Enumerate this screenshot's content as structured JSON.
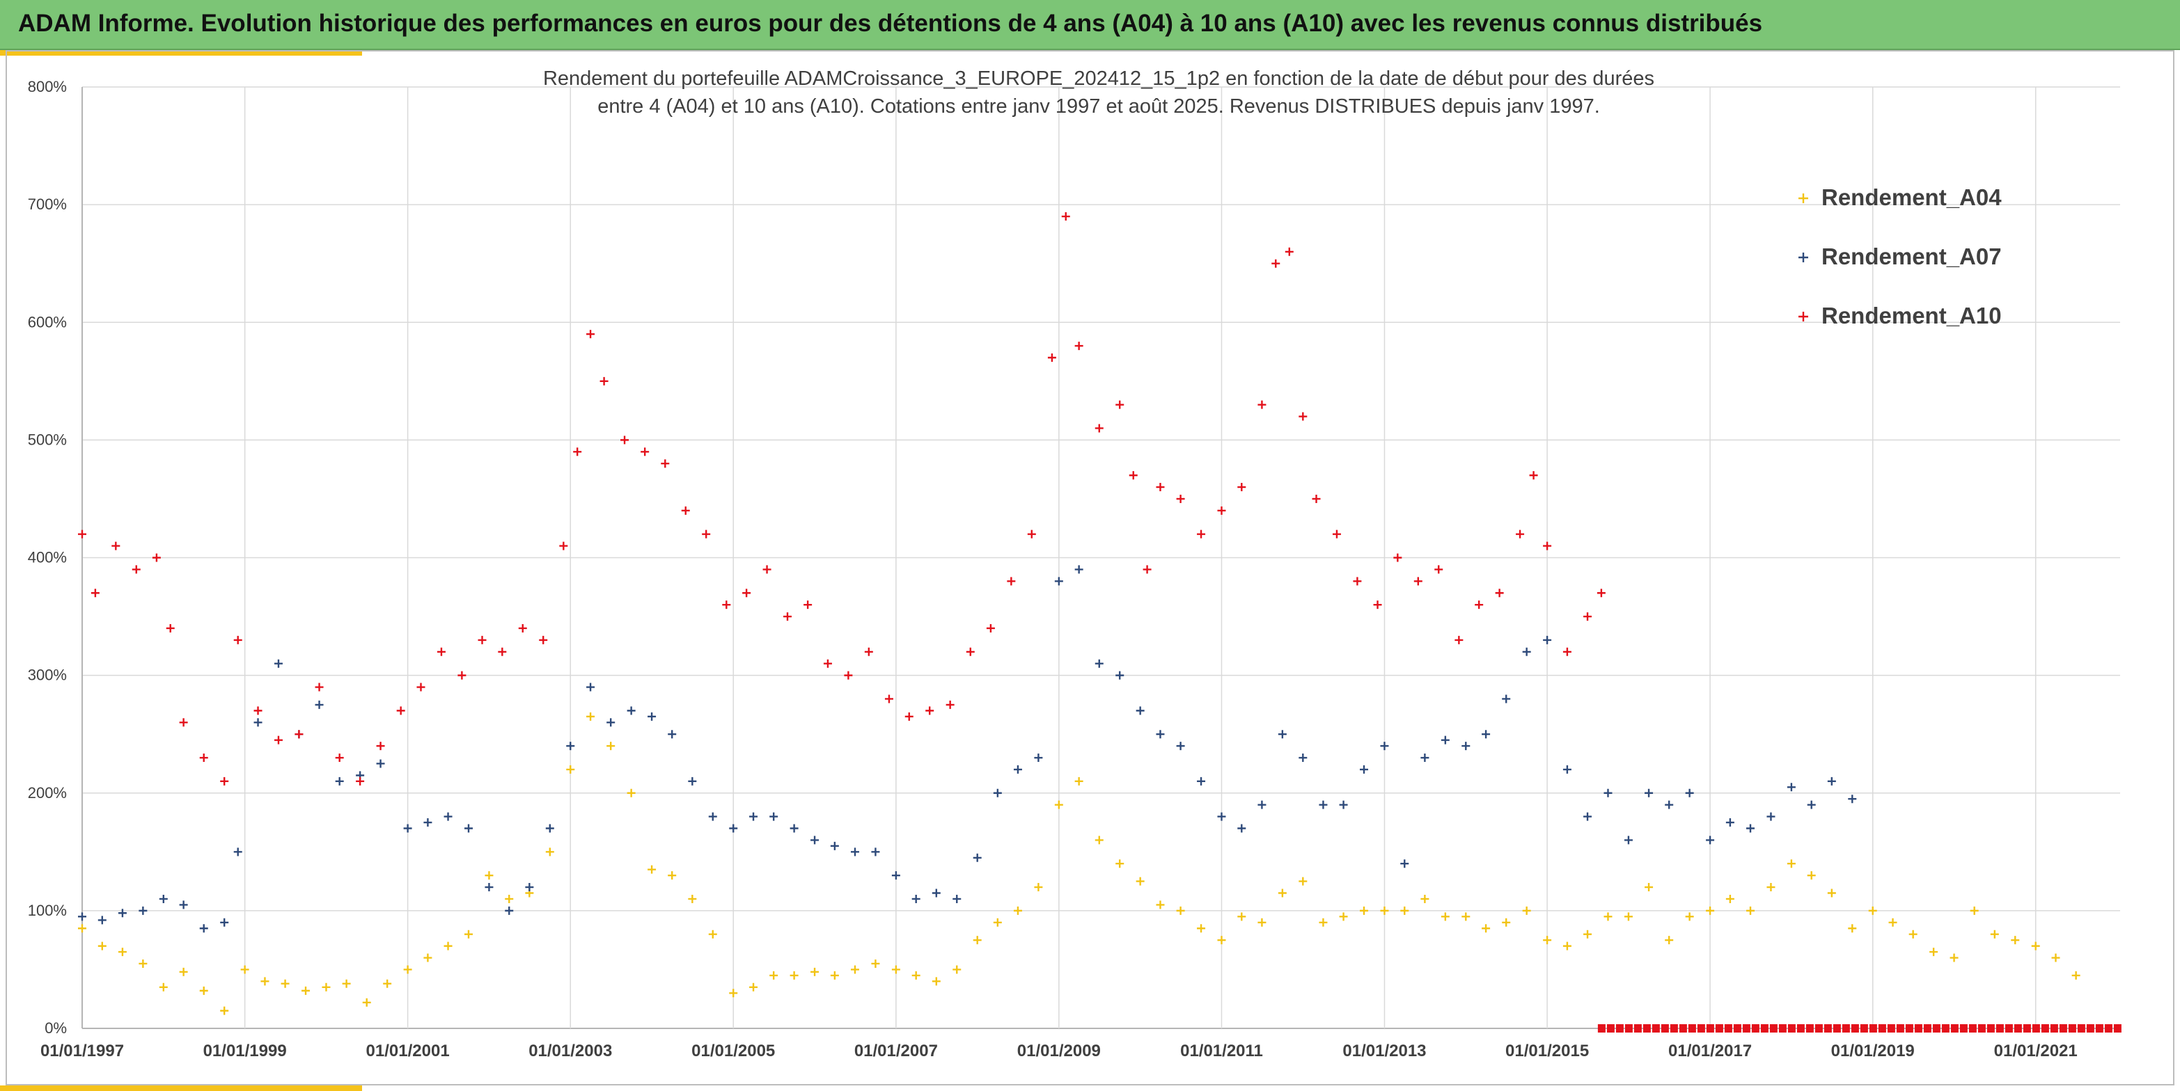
{
  "header": {
    "title": "ADAM Informe. Evolution historique des performances en euros pour des détentions de 4 ans (A04) à 10 ans (A10) avec les revenus connus distribués"
  },
  "colors": {
    "banner": "#7cc576",
    "accent": "#f5c21b",
    "A04": "#f2c314",
    "A07": "#2e4a7a",
    "A10": "#e3111b",
    "distribution_marker": "#e3111b"
  },
  "chart_data": {
    "type": "scatter",
    "title": "Rendement du portefeuille ADAMCroissance_3_EUROPE_202412_15_1p2 en fonction de la date de début pour des durées entre 4 (A04) et 10 ans (A10). Cotations entre janv 1997 et août 2025. Revenus DISTRIBUES depuis janv 1997.",
    "title_lines": [
      "Rendement du portefeuille ADAMCroissance_3_EUROPE_202412_15_1p2  en fonction de la date de début pour des durées",
      "entre 4 (A04) et 10 ans (A10). Cotations entre janv 1997 et août 2025. Revenus DISTRIBUES depuis janv 1997."
    ],
    "xlabel": "",
    "ylabel": "",
    "x_range": [
      "1997-01-01",
      "2022-01-15"
    ],
    "ylim": [
      0,
      800
    ],
    "x_ticks": [
      "01/01/1997",
      "01/01/1999",
      "01/01/2001",
      "01/01/2003",
      "01/01/2005",
      "01/01/2007",
      "01/01/2009",
      "01/01/2011",
      "01/01/2013",
      "01/01/2015",
      "01/01/2017",
      "01/01/2019",
      "01/01/2021"
    ],
    "y_ticks": [
      "0%",
      "100%",
      "200%",
      "300%",
      "400%",
      "500%",
      "600%",
      "700%",
      "800%"
    ],
    "grid": true,
    "legend_position": "top-right",
    "marker": "+",
    "series": [
      {
        "name": "Rendement_A04",
        "color": "#f2c314",
        "points": [
          [
            "1997-01-01",
            85
          ],
          [
            "1997-04-01",
            70
          ],
          [
            "1997-07-01",
            65
          ],
          [
            "1997-10-01",
            55
          ],
          [
            "1998-01-01",
            35
          ],
          [
            "1998-04-01",
            48
          ],
          [
            "1998-07-01",
            32
          ],
          [
            "1998-10-01",
            15
          ],
          [
            "1999-01-01",
            50
          ],
          [
            "1999-04-01",
            40
          ],
          [
            "1999-07-01",
            38
          ],
          [
            "1999-10-01",
            32
          ],
          [
            "2000-01-01",
            35
          ],
          [
            "2000-04-01",
            38
          ],
          [
            "2000-07-01",
            22
          ],
          [
            "2000-10-01",
            38
          ],
          [
            "2001-01-01",
            50
          ],
          [
            "2001-04-01",
            60
          ],
          [
            "2001-07-01",
            70
          ],
          [
            "2001-10-01",
            80
          ],
          [
            "2002-01-01",
            130
          ],
          [
            "2002-04-01",
            110
          ],
          [
            "2002-07-01",
            115
          ],
          [
            "2002-10-01",
            150
          ],
          [
            "2003-01-01",
            220
          ],
          [
            "2003-04-01",
            265
          ],
          [
            "2003-07-01",
            240
          ],
          [
            "2003-10-01",
            200
          ],
          [
            "2004-01-01",
            135
          ],
          [
            "2004-04-01",
            130
          ],
          [
            "2004-07-01",
            110
          ],
          [
            "2004-10-01",
            80
          ],
          [
            "2005-01-01",
            30
          ],
          [
            "2005-04-01",
            35
          ],
          [
            "2005-07-01",
            45
          ],
          [
            "2005-10-01",
            45
          ],
          [
            "2006-01-01",
            48
          ],
          [
            "2006-04-01",
            45
          ],
          [
            "2006-07-01",
            50
          ],
          [
            "2006-10-01",
            55
          ],
          [
            "2007-01-01",
            50
          ],
          [
            "2007-04-01",
            45
          ],
          [
            "2007-07-01",
            40
          ],
          [
            "2007-10-01",
            50
          ],
          [
            "2008-01-01",
            75
          ],
          [
            "2008-04-01",
            90
          ],
          [
            "2008-07-01",
            100
          ],
          [
            "2008-10-01",
            120
          ],
          [
            "2009-01-01",
            190
          ],
          [
            "2009-04-01",
            210
          ],
          [
            "2009-07-01",
            160
          ],
          [
            "2009-10-01",
            140
          ],
          [
            "2010-01-01",
            125
          ],
          [
            "2010-04-01",
            105
          ],
          [
            "2010-07-01",
            100
          ],
          [
            "2010-10-01",
            85
          ],
          [
            "2011-01-01",
            75
          ],
          [
            "2011-04-01",
            95
          ],
          [
            "2011-07-01",
            90
          ],
          [
            "2011-10-01",
            115
          ],
          [
            "2012-01-01",
            125
          ],
          [
            "2012-04-01",
            90
          ],
          [
            "2012-07-01",
            95
          ],
          [
            "2012-10-01",
            100
          ],
          [
            "2013-01-01",
            100
          ],
          [
            "2013-04-01",
            100
          ],
          [
            "2013-07-01",
            110
          ],
          [
            "2013-10-01",
            95
          ],
          [
            "2014-01-01",
            95
          ],
          [
            "2014-04-01",
            85
          ],
          [
            "2014-07-01",
            90
          ],
          [
            "2014-10-01",
            100
          ],
          [
            "2015-01-01",
            75
          ],
          [
            "2015-04-01",
            70
          ],
          [
            "2015-07-01",
            80
          ],
          [
            "2015-10-01",
            95
          ],
          [
            "2016-01-01",
            95
          ],
          [
            "2016-04-01",
            120
          ],
          [
            "2016-07-01",
            75
          ],
          [
            "2016-10-01",
            95
          ],
          [
            "2017-01-01",
            100
          ],
          [
            "2017-04-01",
            110
          ],
          [
            "2017-07-01",
            100
          ],
          [
            "2017-10-01",
            120
          ],
          [
            "2018-01-01",
            140
          ],
          [
            "2018-04-01",
            130
          ],
          [
            "2018-07-01",
            115
          ],
          [
            "2018-10-01",
            85
          ],
          [
            "2019-01-01",
            100
          ],
          [
            "2019-04-01",
            90
          ],
          [
            "2019-07-01",
            80
          ],
          [
            "2019-10-01",
            65
          ],
          [
            "2020-01-01",
            60
          ],
          [
            "2020-04-01",
            100
          ],
          [
            "2020-07-01",
            80
          ],
          [
            "2020-10-01",
            75
          ],
          [
            "2021-01-01",
            70
          ],
          [
            "2021-04-01",
            60
          ],
          [
            "2021-07-01",
            45
          ]
        ]
      },
      {
        "name": "Rendement_A07",
        "color": "#2e4a7a",
        "points": [
          [
            "1997-01-01",
            95
          ],
          [
            "1997-04-01",
            92
          ],
          [
            "1997-07-01",
            98
          ],
          [
            "1997-10-01",
            100
          ],
          [
            "1998-01-01",
            110
          ],
          [
            "1998-04-01",
            105
          ],
          [
            "1998-07-01",
            85
          ],
          [
            "1998-10-01",
            90
          ],
          [
            "1998-12-01",
            150
          ],
          [
            "1999-03-01",
            260
          ],
          [
            "1999-06-01",
            310
          ],
          [
            "1999-09-01",
            250
          ],
          [
            "1999-12-01",
            275
          ],
          [
            "2000-03-01",
            210
          ],
          [
            "2000-06-01",
            215
          ],
          [
            "2000-09-01",
            225
          ],
          [
            "2001-01-01",
            170
          ],
          [
            "2001-04-01",
            175
          ],
          [
            "2001-07-01",
            180
          ],
          [
            "2001-10-01",
            170
          ],
          [
            "2002-01-01",
            120
          ],
          [
            "2002-04-01",
            100
          ],
          [
            "2002-07-01",
            120
          ],
          [
            "2002-10-01",
            170
          ],
          [
            "2003-01-01",
            240
          ],
          [
            "2003-04-01",
            290
          ],
          [
            "2003-07-01",
            260
          ],
          [
            "2003-10-01",
            270
          ],
          [
            "2004-01-01",
            265
          ],
          [
            "2004-04-01",
            250
          ],
          [
            "2004-07-01",
            210
          ],
          [
            "2004-10-01",
            180
          ],
          [
            "2005-01-01",
            170
          ],
          [
            "2005-04-01",
            180
          ],
          [
            "2005-07-01",
            180
          ],
          [
            "2005-10-01",
            170
          ],
          [
            "2006-01-01",
            160
          ],
          [
            "2006-04-01",
            155
          ],
          [
            "2006-07-01",
            150
          ],
          [
            "2006-10-01",
            150
          ],
          [
            "2007-01-01",
            130
          ],
          [
            "2007-04-01",
            110
          ],
          [
            "2007-07-01",
            115
          ],
          [
            "2007-10-01",
            110
          ],
          [
            "2008-01-01",
            145
          ],
          [
            "2008-04-01",
            200
          ],
          [
            "2008-07-01",
            220
          ],
          [
            "2008-10-01",
            230
          ],
          [
            "2009-01-01",
            380
          ],
          [
            "2009-04-01",
            390
          ],
          [
            "2009-07-01",
            310
          ],
          [
            "2009-10-01",
            300
          ],
          [
            "2010-01-01",
            270
          ],
          [
            "2010-04-01",
            250
          ],
          [
            "2010-07-01",
            240
          ],
          [
            "2010-10-01",
            210
          ],
          [
            "2011-01-01",
            180
          ],
          [
            "2011-04-01",
            170
          ],
          [
            "2011-07-01",
            190
          ],
          [
            "2011-10-01",
            250
          ],
          [
            "2012-01-01",
            230
          ],
          [
            "2012-04-01",
            190
          ],
          [
            "2012-07-01",
            190
          ],
          [
            "2012-10-01",
            220
          ],
          [
            "2013-01-01",
            240
          ],
          [
            "2013-04-01",
            140
          ],
          [
            "2013-07-01",
            230
          ],
          [
            "2013-10-01",
            245
          ],
          [
            "2014-01-01",
            240
          ],
          [
            "2014-04-01",
            250
          ],
          [
            "2014-07-01",
            280
          ],
          [
            "2014-10-01",
            320
          ],
          [
            "2015-01-01",
            330
          ],
          [
            "2015-04-01",
            220
          ],
          [
            "2015-07-01",
            180
          ],
          [
            "2015-10-01",
            200
          ],
          [
            "2016-01-01",
            160
          ],
          [
            "2016-04-01",
            200
          ],
          [
            "2016-07-01",
            190
          ],
          [
            "2016-10-01",
            200
          ],
          [
            "2017-01-01",
            160
          ],
          [
            "2017-04-01",
            175
          ],
          [
            "2017-07-01",
            170
          ],
          [
            "2017-10-01",
            180
          ],
          [
            "2018-01-01",
            205
          ],
          [
            "2018-04-01",
            190
          ],
          [
            "2018-07-01",
            210
          ],
          [
            "2018-10-01",
            195
          ]
        ]
      },
      {
        "name": "Rendement_A10",
        "color": "#e3111b",
        "points": [
          [
            "1997-01-01",
            420
          ],
          [
            "1997-03-01",
            370
          ],
          [
            "1997-06-01",
            410
          ],
          [
            "1997-09-01",
            390
          ],
          [
            "1997-12-01",
            400
          ],
          [
            "1998-02-01",
            340
          ],
          [
            "1998-04-01",
            260
          ],
          [
            "1998-07-01",
            230
          ],
          [
            "1998-10-01",
            210
          ],
          [
            "1998-12-01",
            330
          ],
          [
            "1999-03-01",
            270
          ],
          [
            "1999-06-01",
            245
          ],
          [
            "1999-09-01",
            250
          ],
          [
            "1999-12-01",
            290
          ],
          [
            "2000-03-01",
            230
          ],
          [
            "2000-06-01",
            210
          ],
          [
            "2000-09-01",
            240
          ],
          [
            "2000-12-01",
            270
          ],
          [
            "2001-03-01",
            290
          ],
          [
            "2001-06-01",
            320
          ],
          [
            "2001-09-01",
            300
          ],
          [
            "2001-12-01",
            330
          ],
          [
            "2002-03-01",
            320
          ],
          [
            "2002-06-01",
            340
          ],
          [
            "2002-09-01",
            330
          ],
          [
            "2002-12-01",
            410
          ],
          [
            "2003-02-01",
            490
          ],
          [
            "2003-04-01",
            590
          ],
          [
            "2003-06-01",
            550
          ],
          [
            "2003-09-01",
            500
          ],
          [
            "2003-12-01",
            490
          ],
          [
            "2004-03-01",
            480
          ],
          [
            "2004-06-01",
            440
          ],
          [
            "2004-09-01",
            420
          ],
          [
            "2004-12-01",
            360
          ],
          [
            "2005-03-01",
            370
          ],
          [
            "2005-06-01",
            390
          ],
          [
            "2005-09-01",
            350
          ],
          [
            "2005-12-01",
            360
          ],
          [
            "2006-03-01",
            310
          ],
          [
            "2006-06-01",
            300
          ],
          [
            "2006-09-01",
            320
          ],
          [
            "2006-12-01",
            280
          ],
          [
            "2007-03-01",
            265
          ],
          [
            "2007-06-01",
            270
          ],
          [
            "2007-09-01",
            275
          ],
          [
            "2007-12-01",
            320
          ],
          [
            "2008-03-01",
            340
          ],
          [
            "2008-06-01",
            380
          ],
          [
            "2008-09-01",
            420
          ],
          [
            "2008-12-01",
            570
          ],
          [
            "2009-02-01",
            690
          ],
          [
            "2009-04-01",
            580
          ],
          [
            "2009-07-01",
            510
          ],
          [
            "2009-10-01",
            530
          ],
          [
            "2009-12-01",
            470
          ],
          [
            "2010-02-01",
            390
          ],
          [
            "2010-04-01",
            460
          ],
          [
            "2010-07-01",
            450
          ],
          [
            "2010-10-01",
            420
          ],
          [
            "2011-01-01",
            440
          ],
          [
            "2011-04-01",
            460
          ],
          [
            "2011-07-01",
            530
          ],
          [
            "2011-09-01",
            650
          ],
          [
            "2011-11-01",
            660
          ],
          [
            "2012-01-01",
            520
          ],
          [
            "2012-03-01",
            450
          ],
          [
            "2012-06-01",
            420
          ],
          [
            "2012-09-01",
            380
          ],
          [
            "2012-12-01",
            360
          ],
          [
            "2013-03-01",
            400
          ],
          [
            "2013-06-01",
            380
          ],
          [
            "2013-09-01",
            390
          ],
          [
            "2013-12-01",
            330
          ],
          [
            "2014-03-01",
            360
          ],
          [
            "2014-06-01",
            370
          ],
          [
            "2014-09-01",
            420
          ],
          [
            "2014-11-01",
            470
          ],
          [
            "2015-01-01",
            410
          ],
          [
            "2015-04-01",
            320
          ],
          [
            "2015-07-01",
            350
          ],
          [
            "2015-09-01",
            370
          ]
        ]
      }
    ],
    "distribution_markers": {
      "color": "#e3111b",
      "from": "2015-09-01",
      "to": "2022-01-15",
      "value": 0
    }
  }
}
